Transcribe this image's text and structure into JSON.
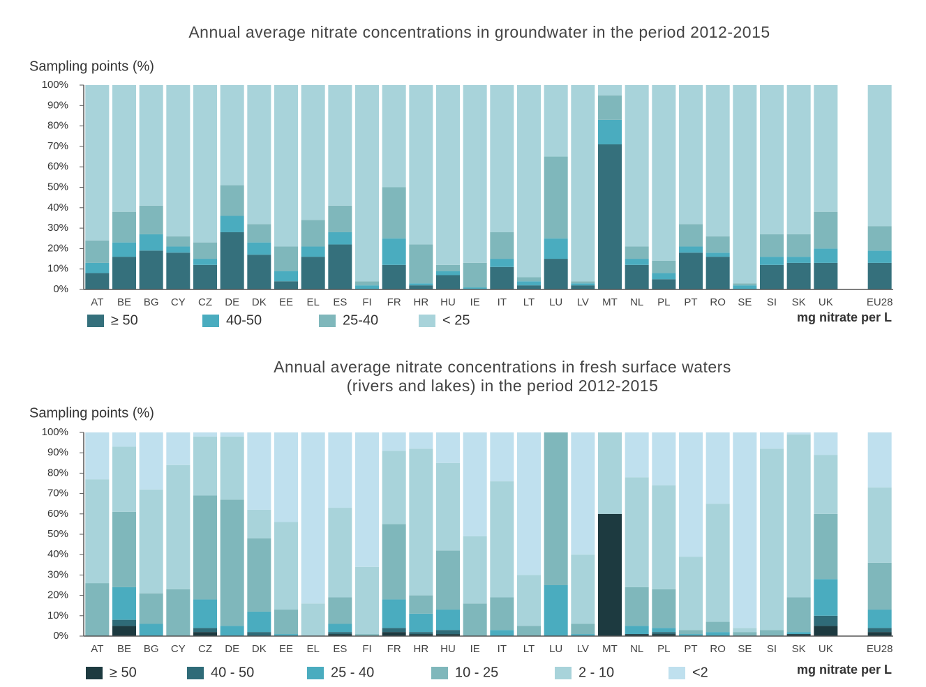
{
  "chart_data": [
    {
      "type": "bar",
      "stacked": true,
      "title": [
        "Annual average nitrate concentrations in groundwater in the period 2012-2015"
      ],
      "y_label": "Sampling points (%)",
      "unit_label": "mg nitrate per L",
      "categories": [
        "AT",
        "BE",
        "BG",
        "CY",
        "CZ",
        "DE",
        "DK",
        "EE",
        "EL",
        "ES",
        "FI",
        "FR",
        "HR",
        "HU",
        "IE",
        "IT",
        "LT",
        "LU",
        "LV",
        "MT",
        "NL",
        "PL",
        "PT",
        "RO",
        "SE",
        "SI",
        "SK",
        "UK",
        null,
        "EU28"
      ],
      "series": [
        {
          "name": "≥ 50",
          "color": "#35707c",
          "values": [
            8,
            16,
            19,
            18,
            12,
            28,
            17,
            4,
            16,
            22,
            0,
            12,
            2,
            7,
            0,
            11,
            2,
            15,
            2,
            71,
            12,
            5,
            18,
            16,
            0,
            12,
            13,
            13,
            null,
            13
          ]
        },
        {
          "name": "40-50",
          "color": "#4aacbf",
          "values": [
            5,
            7,
            8,
            3,
            3,
            8,
            6,
            5,
            5,
            6,
            2,
            13,
            1,
            2,
            1,
            4,
            2,
            10,
            1,
            12,
            3,
            3,
            3,
            2,
            2,
            4,
            3,
            7,
            null,
            6
          ]
        },
        {
          "name": "25-40",
          "color": "#7fb7bb",
          "values": [
            11,
            15,
            14,
            5,
            8,
            15,
            9,
            12,
            13,
            13,
            2,
            25,
            19,
            3,
            12,
            13,
            2,
            40,
            1,
            12,
            6,
            6,
            11,
            8,
            1,
            11,
            11,
            18,
            null,
            12
          ]
        },
        {
          "name": "< 25",
          "color": "#a8d3da",
          "values": [
            76,
            62,
            59,
            74,
            77,
            49,
            68,
            79,
            66,
            59,
            96,
            50,
            78,
            88,
            87,
            72,
            94,
            35,
            96,
            5,
            79,
            86,
            68,
            74,
            97,
            73,
            73,
            62,
            null,
            69
          ]
        }
      ],
      "ylim": [
        0,
        100
      ],
      "yticks": [
        {
          "value": 0,
          "label": "0%"
        },
        {
          "value": 10,
          "label": "10%"
        },
        {
          "value": 20,
          "label": "20%"
        },
        {
          "value": 30,
          "label": "30%"
        },
        {
          "value": 40,
          "label": "40%"
        },
        {
          "value": 50,
          "label": "50%"
        },
        {
          "value": 60,
          "label": "60%"
        },
        {
          "value": 70,
          "label": "70%"
        },
        {
          "value": 80,
          "label": "80%"
        },
        {
          "value": 90,
          "label": "90%"
        },
        {
          "value": 100,
          "label": "100%"
        }
      ]
    },
    {
      "type": "bar",
      "stacked": true,
      "title": [
        "Annual average nitrate concentrations in fresh surface waters",
        "(rivers and lakes) in the period 2012-2015"
      ],
      "y_label": "Sampling points (%)",
      "unit_label": "mg nitrate per L",
      "categories": [
        "AT",
        "BE",
        "BG",
        "CY",
        "CZ",
        "DE",
        "DK",
        "EE",
        "EL",
        "ES",
        "FI",
        "FR",
        "HR",
        "HU",
        "IE",
        "IT",
        "LT",
        "LU",
        "LV",
        "MT",
        "NL",
        "PL",
        "PT",
        "RO",
        "SE",
        "SI",
        "SK",
        "UK",
        null,
        "EU28"
      ],
      "series": [
        {
          "name": "≥ 50",
          "color": "#1d3a40",
          "values": [
            0,
            5,
            0,
            0,
            2,
            0,
            0,
            0,
            0,
            1,
            0,
            2,
            1,
            1,
            0,
            0,
            0,
            0,
            0,
            60,
            1,
            1,
            0,
            0,
            0,
            0,
            1,
            5,
            null,
            2
          ]
        },
        {
          "name": "40 - 50",
          "color": "#2f6b78",
          "values": [
            0,
            3,
            0,
            0,
            2,
            0,
            2,
            0,
            0,
            1,
            0,
            2,
            1,
            2,
            0,
            0,
            0,
            0,
            0,
            0,
            0,
            1,
            0,
            0,
            0,
            0,
            0,
            5,
            null,
            2
          ]
        },
        {
          "name": "25 - 40",
          "color": "#4aacbf",
          "values": [
            0,
            16,
            6,
            0,
            14,
            5,
            10,
            1,
            0,
            4,
            0,
            14,
            9,
            10,
            0,
            3,
            0,
            25,
            1,
            0,
            4,
            2,
            1,
            2,
            0,
            0,
            1,
            18,
            null,
            9
          ]
        },
        {
          "name": "10 - 25",
          "color": "#7fb7bb",
          "values": [
            26,
            37,
            15,
            23,
            51,
            62,
            36,
            12,
            0,
            13,
            1,
            37,
            9,
            29,
            16,
            16,
            5,
            75,
            5,
            0,
            19,
            19,
            2,
            5,
            2,
            3,
            17,
            32,
            null,
            23
          ]
        },
        {
          "name": "2 - 10",
          "color": "#a8d3da",
          "values": [
            51,
            32,
            51,
            61,
            29,
            31,
            14,
            43,
            16,
            44,
            33,
            36,
            72,
            43,
            33,
            57,
            25,
            0,
            34,
            40,
            54,
            51,
            36,
            58,
            2,
            89,
            80,
            29,
            null,
            37
          ]
        },
        {
          "name": "<2",
          "color": "#bfe0ee",
          "values": [
            23,
            7,
            28,
            16,
            2,
            2,
            38,
            44,
            84,
            37,
            66,
            9,
            8,
            15,
            51,
            24,
            70,
            0,
            60,
            0,
            22,
            26,
            61,
            35,
            96,
            8,
            1,
            11,
            null,
            27
          ]
        }
      ],
      "ylim": [
        0,
        100
      ],
      "yticks": [
        {
          "value": 0,
          "label": "0%"
        },
        {
          "value": 10,
          "label": "10%"
        },
        {
          "value": 20,
          "label": "20%"
        },
        {
          "value": 30,
          "label": "30%"
        },
        {
          "value": 40,
          "label": "40%"
        },
        {
          "value": 50,
          "label": "50%"
        },
        {
          "value": 60,
          "label": "60%"
        },
        {
          "value": 70,
          "label": "70%"
        },
        {
          "value": 80,
          "label": "80%"
        },
        {
          "value": 90,
          "label": "90%"
        },
        {
          "value": 100,
          "label": "100%"
        }
      ]
    }
  ]
}
